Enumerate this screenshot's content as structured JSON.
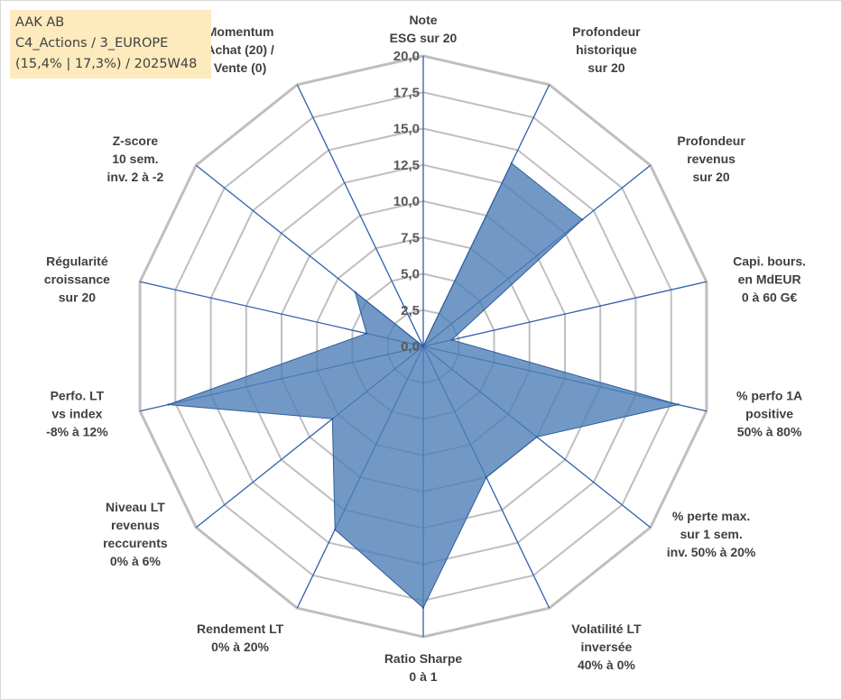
{
  "info_box": {
    "line1": "AAK AB",
    "line2": "C4_Actions / 3_EUROPE",
    "line3": "(15,4% | 17,3%) / 2025W48"
  },
  "chart_data": {
    "type": "radar",
    "rmin": 0,
    "rmax": 20,
    "ticks": [
      "0,0",
      "2,5",
      "5,0",
      "7,5",
      "10,0",
      "12,5",
      "15,0",
      "17,5",
      "20,0"
    ],
    "tick_values": [
      0,
      2.5,
      5,
      7.5,
      10,
      12.5,
      15,
      17.5,
      20
    ],
    "grid": true,
    "legend": "none",
    "fill_color": "#4f7fb8",
    "line_color": "#2e5d99",
    "grid_color": "#bfbfbf",
    "spoke_color": "#2e5fad",
    "categories": [
      [
        "Note",
        "ESG sur 20"
      ],
      [
        "Profondeur",
        "historique",
        "sur 20"
      ],
      [
        "Profondeur",
        "revenus",
        "sur 20"
      ],
      [
        "Capi. bours.",
        "en MdEUR",
        "0 à 60 G€"
      ],
      [
        "% perfo 1A",
        "positive",
        "50% à 80%"
      ],
      [
        "% perte max.",
        "sur 1 sem.",
        "inv. 50% à 20%"
      ],
      [
        "Volatilité LT",
        "inversée",
        "40% à 0%"
      ],
      [
        "Ratio Sharpe",
        "0 à 1"
      ],
      [
        "Rendement LT",
        "0% à 20%"
      ],
      [
        "Niveau LT",
        "revenus",
        "reccurents",
        "0% à 6%"
      ],
      [
        "Perfo. LT",
        "vs index",
        "-8% à 12%"
      ],
      [
        "Régularité",
        "croissance",
        "sur 20"
      ],
      [
        "Z-score",
        "10 sem.",
        "inv. 2 à -2"
      ],
      [
        "Momentum",
        "Achat (20) /",
        "Vente (0)"
      ]
    ],
    "series": [
      {
        "values": [
          0,
          14,
          14,
          2,
          18,
          10,
          10,
          18,
          14,
          8,
          18,
          4,
          6,
          0
        ]
      }
    ]
  }
}
